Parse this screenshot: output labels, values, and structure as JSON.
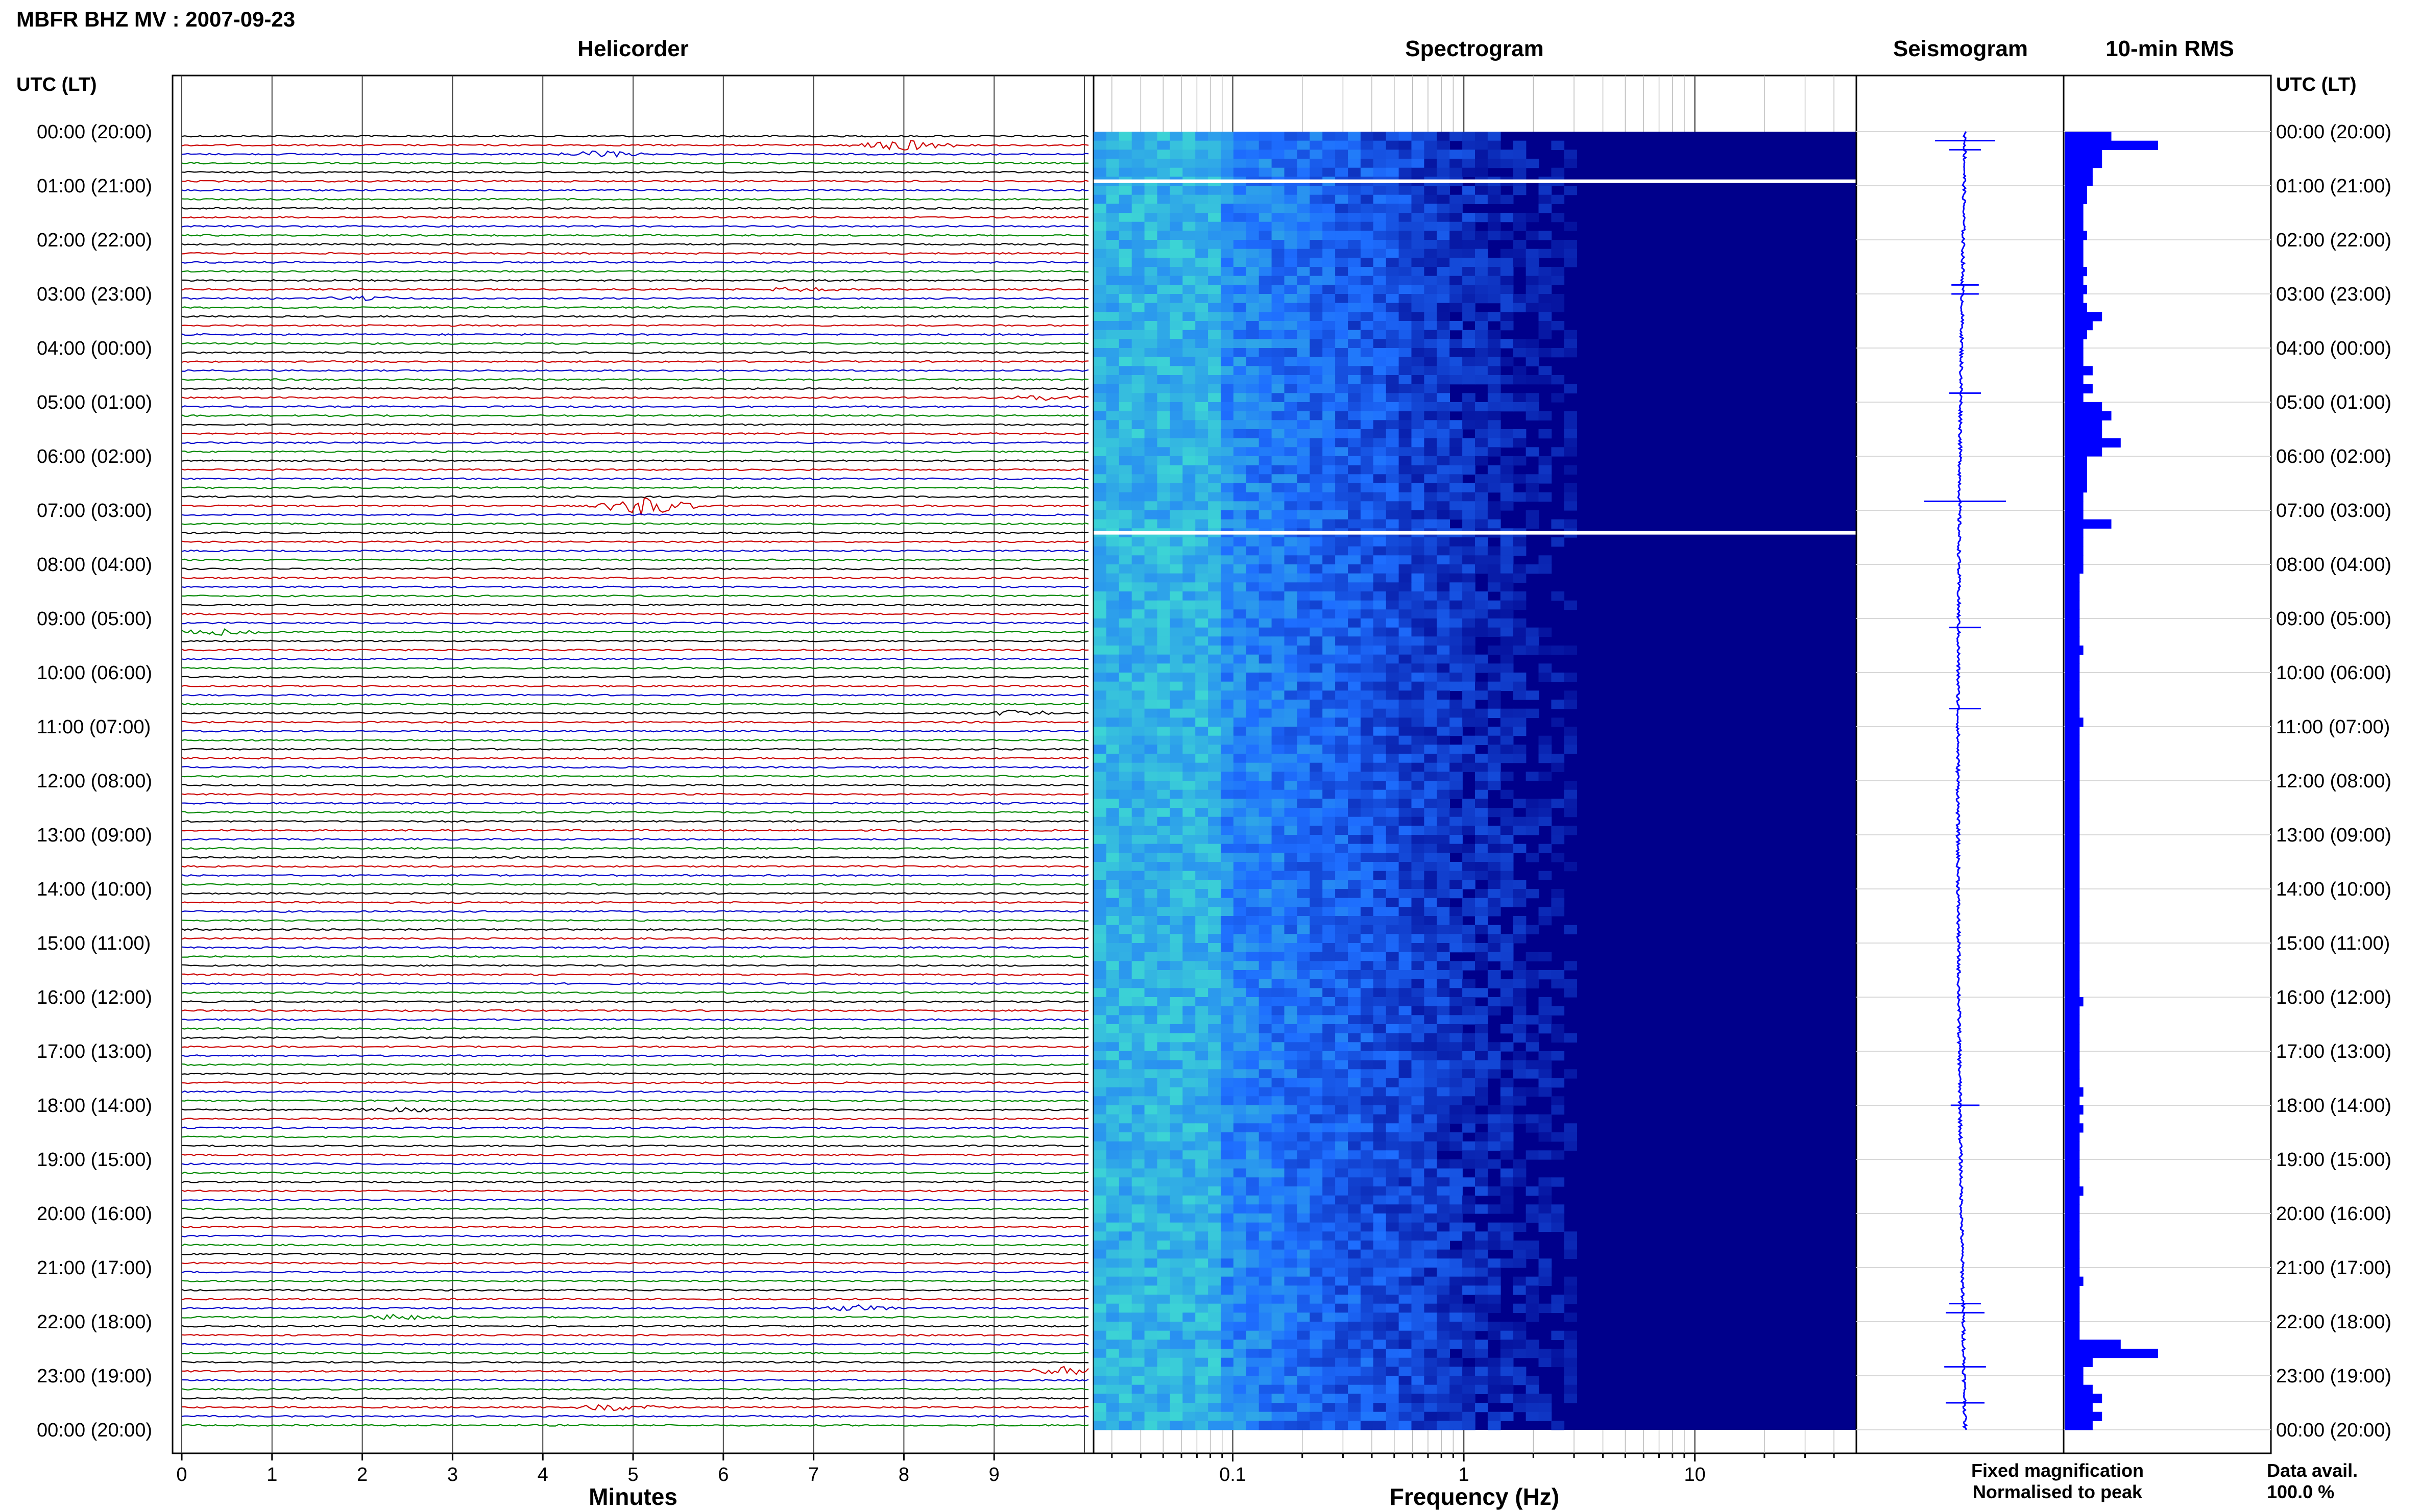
{
  "title": "MBFR BHZ MV : 2007-09-23",
  "panels": {
    "helicorder": "Helicorder",
    "spectrogram": "Spectrogram",
    "seismogram": "Seismogram",
    "rms": "10-min RMS"
  },
  "axis_header_left": "UTC (LT)",
  "axis_header_right": "UTC (LT)",
  "time_labels": [
    "00:00 (20:00)",
    "01:00 (21:00)",
    "02:00 (22:00)",
    "03:00 (23:00)",
    "04:00 (00:00)",
    "05:00 (01:00)",
    "06:00 (02:00)",
    "07:00 (03:00)",
    "08:00 (04:00)",
    "09:00 (05:00)",
    "10:00 (06:00)",
    "11:00 (07:00)",
    "12:00 (08:00)",
    "13:00 (09:00)",
    "14:00 (10:00)",
    "15:00 (11:00)",
    "16:00 (12:00)",
    "17:00 (13:00)",
    "18:00 (14:00)",
    "19:00 (15:00)",
    "20:00 (16:00)",
    "21:00 (17:00)",
    "22:00 (18:00)",
    "23:00 (19:00)",
    "00:00 (20:00)"
  ],
  "minutes_axis": {
    "label": "Minutes",
    "ticks": [
      "0",
      "1",
      "2",
      "3",
      "4",
      "5",
      "6",
      "7",
      "8",
      "9"
    ]
  },
  "frequency_axis": {
    "label": "Frequency (Hz)",
    "ticks": [
      "0.1",
      "1",
      "10"
    ]
  },
  "legend": {
    "fixed": "Fixed magnification",
    "normalised": "Normalised to peak",
    "fixed_color": "#0000ff",
    "normalised_color": "#ff0000"
  },
  "data_avail": {
    "label": "Data avail.",
    "value": "100.0 %"
  },
  "colors": {
    "trace_colors": [
      "#000000",
      "#cc0000",
      "#0000cc",
      "#008800"
    ],
    "spectrogram_low": "#00008b",
    "spectrogram_high": "#40e0d0",
    "rms_bar": "#0000ff"
  },
  "chart_data": {
    "type": "heatmap",
    "x_helicorder_minutes": [
      0,
      10
    ],
    "x_spectrogram_hz": [
      0.025,
      50
    ],
    "x_scale_spectrogram": "log",
    "rows_per_hour": 6,
    "hours": 24,
    "gaps_utc": [
      "00:45",
      "07:15"
    ],
    "helicorder_events": [
      {
        "time": "00:10",
        "minute": 8.0,
        "amp": 3.5
      },
      {
        "time": "00:20",
        "minute": 4.7,
        "amp": 1.5
      },
      {
        "time": "02:50",
        "minute": 6.9,
        "amp": 1.2
      },
      {
        "time": "03:00",
        "minute": 2.0,
        "amp": 1.2
      },
      {
        "time": "04:50",
        "minute": 9.5,
        "amp": 1.5
      },
      {
        "time": "06:50",
        "minute": 5.15,
        "amp": 5.0
      },
      {
        "time": "09:10",
        "minute": 0.4,
        "amp": 1.5
      },
      {
        "time": "10:40",
        "minute": 9.2,
        "amp": 1.5
      },
      {
        "time": "18:00",
        "minute": 2.4,
        "amp": 1.3
      },
      {
        "time": "21:40",
        "minute": 7.5,
        "amp": 1.5
      },
      {
        "time": "21:50",
        "minute": 2.5,
        "amp": 2.0
      },
      {
        "time": "22:50",
        "minute": 9.8,
        "amp": 2.2
      },
      {
        "time": "23:30",
        "minute": 4.8,
        "amp": 2.0
      }
    ],
    "rms_10min": [
      0.25,
      0.5,
      0.2,
      0.2,
      0.15,
      0.15,
      0.12,
      0.12,
      0.1,
      0.1,
      0.1,
      0.12,
      0.1,
      0.1,
      0.1,
      0.12,
      0.1,
      0.12,
      0.1,
      0.12,
      0.2,
      0.15,
      0.12,
      0.1,
      0.1,
      0.1,
      0.15,
      0.1,
      0.15,
      0.1,
      0.2,
      0.25,
      0.2,
      0.2,
      0.3,
      0.2,
      0.12,
      0.12,
      0.12,
      0.12,
      0.1,
      0.1,
      0.1,
      0.25,
      0.1,
      0.1,
      0.1,
      0.1,
      0.1,
      0.08,
      0.08,
      0.08,
      0.08,
      0.08,
      0.08,
      0.08,
      0.08,
      0.1,
      0.08,
      0.08,
      0.08,
      0.08,
      0.08,
      0.08,
      0.08,
      0.1,
      0.08,
      0.08,
      0.08,
      0.08,
      0.08,
      0.08,
      0.08,
      0.08,
      0.08,
      0.08,
      0.08,
      0.08,
      0.08,
      0.08,
      0.08,
      0.08,
      0.08,
      0.08,
      0.08,
      0.08,
      0.08,
      0.08,
      0.08,
      0.08,
      0.08,
      0.08,
      0.08,
      0.08,
      0.08,
      0.08,
      0.1,
      0.08,
      0.08,
      0.08,
      0.08,
      0.08,
      0.08,
      0.08,
      0.08,
      0.08,
      0.1,
      0.08,
      0.1,
      0.08,
      0.1,
      0.08,
      0.08,
      0.08,
      0.08,
      0.08,
      0.08,
      0.1,
      0.08,
      0.08,
      0.08,
      0.08,
      0.08,
      0.08,
      0.08,
      0.08,
      0.08,
      0.1,
      0.08,
      0.08,
      0.08,
      0.08,
      0.08,
      0.08,
      0.3,
      0.5,
      0.15,
      0.1,
      0.1,
      0.15,
      0.2,
      0.15,
      0.2,
      0.15
    ]
  }
}
